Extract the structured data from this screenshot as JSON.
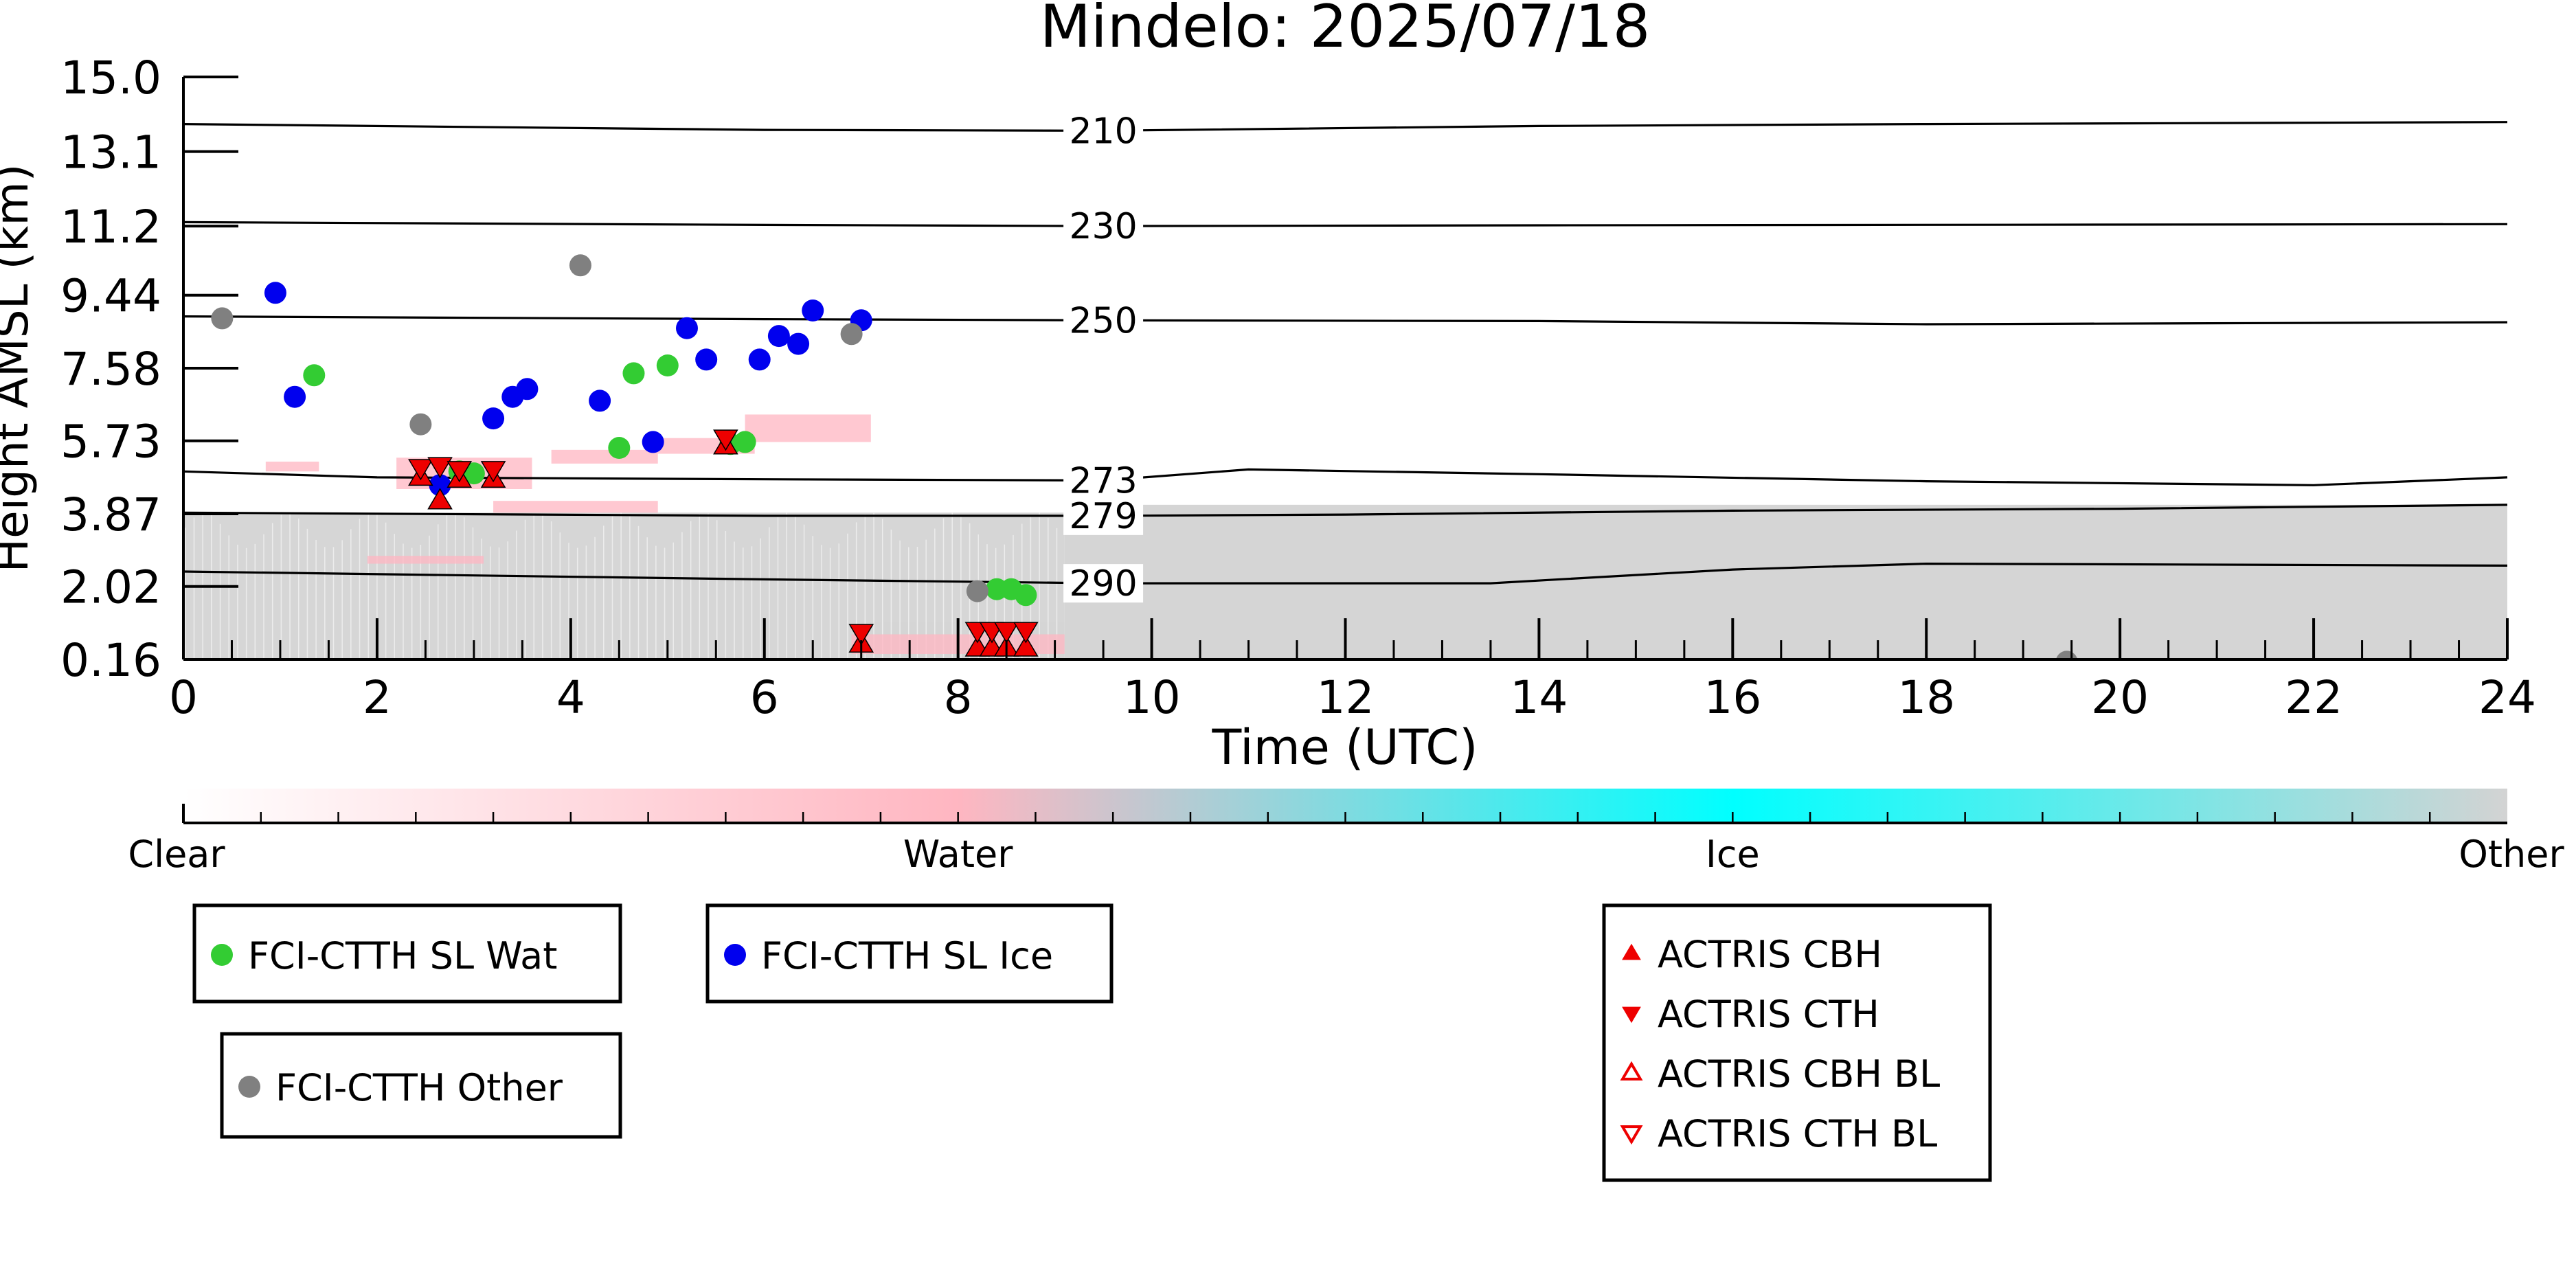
{
  "chart_data": {
    "type": "scatter",
    "title": "Mindelo: 2025/07/18",
    "xlabel": "Time (UTC)",
    "ylabel": "Height AMSL (km)",
    "xlim": [
      0,
      24
    ],
    "ylim": [
      0.16,
      15.0
    ],
    "x_ticks": [
      0,
      2,
      4,
      6,
      8,
      10,
      12,
      14,
      16,
      18,
      20,
      22,
      24
    ],
    "y_ticks": [
      "0.16",
      "2.02",
      "3.87",
      "5.73",
      "7.58",
      "9.44",
      "11.2",
      "13.1",
      "15.0"
    ],
    "grid": false,
    "temperature_isolines": [
      {
        "label": "210",
        "label_x": 9.5,
        "points": [
          [
            0,
            13.8
          ],
          [
            6,
            13.65
          ],
          [
            9.5,
            13.63
          ],
          [
            14,
            13.75
          ],
          [
            18,
            13.8
          ],
          [
            24,
            13.85
          ]
        ]
      },
      {
        "label": "230",
        "label_x": 9.5,
        "points": [
          [
            0,
            11.3
          ],
          [
            6,
            11.23
          ],
          [
            9.5,
            11.2
          ],
          [
            14,
            11.22
          ],
          [
            24,
            11.25
          ]
        ]
      },
      {
        "label": "250",
        "label_x": 9.5,
        "points": [
          [
            0,
            8.9
          ],
          [
            6,
            8.83
          ],
          [
            9.5,
            8.8
          ],
          [
            14,
            8.78
          ],
          [
            18,
            8.7
          ],
          [
            24,
            8.75
          ]
        ]
      },
      {
        "label": "273",
        "label_x": 9.5,
        "points": [
          [
            0,
            4.95
          ],
          [
            2,
            4.8
          ],
          [
            6,
            4.75
          ],
          [
            9.5,
            4.72
          ],
          [
            11,
            5.0
          ],
          [
            14,
            4.88
          ],
          [
            18,
            4.7
          ],
          [
            22,
            4.6
          ],
          [
            24,
            4.8
          ]
        ]
      },
      {
        "label": "279",
        "label_x": 9.5,
        "points": [
          [
            0,
            3.9
          ],
          [
            6,
            3.82
          ],
          [
            9.5,
            3.82
          ],
          [
            12,
            3.85
          ],
          [
            16,
            3.95
          ],
          [
            20,
            4.0
          ],
          [
            24,
            4.1
          ]
        ]
      },
      {
        "label": "290",
        "label_x": 9.5,
        "points": [
          [
            0,
            2.4
          ],
          [
            6,
            2.2
          ],
          [
            9.5,
            2.1
          ],
          [
            13.5,
            2.1
          ],
          [
            16,
            2.45
          ],
          [
            18,
            2.6
          ],
          [
            24,
            2.55
          ]
        ]
      }
    ],
    "series": [
      {
        "name": "FCI-CTTH SL Wat",
        "color": "#33cc33",
        "marker": "circle",
        "points": [
          [
            1.35,
            7.4
          ],
          [
            2.85,
            4.95
          ],
          [
            3.0,
            4.9
          ],
          [
            4.5,
            5.55
          ],
          [
            4.65,
            7.45
          ],
          [
            5.0,
            7.65
          ],
          [
            5.65,
            5.65
          ],
          [
            5.8,
            5.7
          ],
          [
            8.4,
            1.95
          ],
          [
            8.55,
            1.95
          ],
          [
            8.7,
            1.8
          ]
        ]
      },
      {
        "name": "FCI-CTTH SL Ice",
        "color": "#0000ee",
        "marker": "circle",
        "points": [
          [
            0.95,
            9.5
          ],
          [
            1.15,
            6.85
          ],
          [
            2.65,
            4.6
          ],
          [
            3.2,
            6.3
          ],
          [
            3.4,
            6.85
          ],
          [
            3.55,
            7.05
          ],
          [
            4.3,
            6.75
          ],
          [
            4.85,
            5.7
          ],
          [
            5.2,
            8.6
          ],
          [
            5.4,
            7.8
          ],
          [
            5.95,
            7.8
          ],
          [
            6.15,
            8.4
          ],
          [
            6.35,
            8.2
          ],
          [
            6.5,
            9.05
          ],
          [
            7.0,
            8.8
          ]
        ]
      },
      {
        "name": "FCI-CTTH Other",
        "color": "#808080",
        "marker": "circle",
        "points": [
          [
            0.4,
            8.85
          ],
          [
            2.45,
            6.15
          ],
          [
            4.1,
            10.2
          ],
          [
            6.9,
            8.45
          ],
          [
            8.2,
            1.9
          ],
          [
            19.45,
            0.1
          ]
        ]
      },
      {
        "name": "ACTRIS CBH",
        "color": "#ee0000",
        "marker": "triangle-up",
        "points": [
          [
            2.45,
            4.8
          ],
          [
            2.65,
            4.2
          ],
          [
            2.85,
            4.75
          ],
          [
            3.2,
            4.75
          ],
          [
            5.6,
            5.6
          ],
          [
            7.0,
            0.55
          ],
          [
            8.2,
            0.45
          ],
          [
            8.35,
            0.45
          ],
          [
            8.5,
            0.45
          ],
          [
            8.7,
            0.45
          ]
        ]
      },
      {
        "name": "ACTRIS CTH",
        "color": "#ee0000",
        "marker": "triangle-down",
        "points": [
          [
            2.45,
            5.05
          ],
          [
            2.65,
            5.1
          ],
          [
            2.85,
            5.0
          ],
          [
            3.2,
            5.0
          ],
          [
            5.6,
            5.8
          ],
          [
            7.0,
            0.85
          ],
          [
            8.2,
            0.9
          ],
          [
            8.35,
            0.9
          ],
          [
            8.5,
            0.9
          ],
          [
            8.7,
            0.9
          ]
        ]
      },
      {
        "name": "ACTRIS CBH BL",
        "color": "#ee0000",
        "marker": "triangle-up-open",
        "points": []
      },
      {
        "name": "ACTRIS CTH BL",
        "color": "#ee0000",
        "marker": "triangle-down-open",
        "points": []
      }
    ],
    "background_curtain": {
      "description_free_value": "classification backdrop: Clear / Water / Ice / Other",
      "other_layers": [
        {
          "x0": 0,
          "x1": 9.1,
          "y0": 0.16,
          "y1": 3.9,
          "color": "#d3d3d3",
          "opacity": 0.92
        },
        {
          "x0": 9.1,
          "x1": 24,
          "y0": 0.16,
          "y1": 4.1,
          "color": "#d3d3d3",
          "opacity": 0.95
        },
        {
          "x0": 7.0,
          "x1": 9.1,
          "y0": 0.16,
          "y1": 1.1,
          "color": "#d3d3d3",
          "opacity": 0.3
        }
      ],
      "water_patches": [
        {
          "x0": 0.85,
          "x1": 1.4,
          "y0": 4.95,
          "y1": 5.2
        },
        {
          "x0": 2.2,
          "x1": 3.6,
          "y0": 4.5,
          "y1": 5.3
        },
        {
          "x0": 3.8,
          "x1": 4.9,
          "y0": 5.15,
          "y1": 5.5
        },
        {
          "x0": 4.9,
          "x1": 5.9,
          "y0": 5.4,
          "y1": 5.8
        },
        {
          "x0": 5.8,
          "x1": 7.1,
          "y0": 5.7,
          "y1": 6.4
        },
        {
          "x0": 3.2,
          "x1": 4.9,
          "y0": 3.9,
          "y1": 4.2
        },
        {
          "x0": 1.9,
          "x1": 3.1,
          "y0": 2.6,
          "y1": 2.8
        },
        {
          "x0": 6.9,
          "x1": 9.1,
          "y0": 0.3,
          "y1": 0.8
        }
      ]
    },
    "colorbar": {
      "labels": [
        "Clear",
        "Water",
        "Ice",
        "Other"
      ],
      "colors": [
        "#ffffff",
        "#ffb6c1",
        "#00ffff",
        "#d3d3d3"
      ]
    },
    "legend": {
      "boxes": [
        {
          "entries": [
            {
              "label": "FCI-CTTH SL Wat",
              "color": "#33cc33",
              "marker": "circle"
            }
          ]
        },
        {
          "entries": [
            {
              "label": "FCI-CTTH SL Ice",
              "color": "#0000ee",
              "marker": "circle"
            }
          ]
        },
        {
          "entries": [
            {
              "label": "FCI-CTTH Other",
              "color": "#808080",
              "marker": "circle"
            }
          ]
        },
        {
          "entries": [
            {
              "label": "ACTRIS CBH",
              "color": "#ee0000",
              "marker": "triangle-up"
            },
            {
              "label": "ACTRIS CTH",
              "color": "#ee0000",
              "marker": "triangle-down"
            },
            {
              "label": "ACTRIS CBH BL",
              "color": "#ee0000",
              "marker": "triangle-up-open"
            },
            {
              "label": "ACTRIS CTH BL",
              "color": "#ee0000",
              "marker": "triangle-down-open"
            }
          ]
        }
      ]
    }
  }
}
